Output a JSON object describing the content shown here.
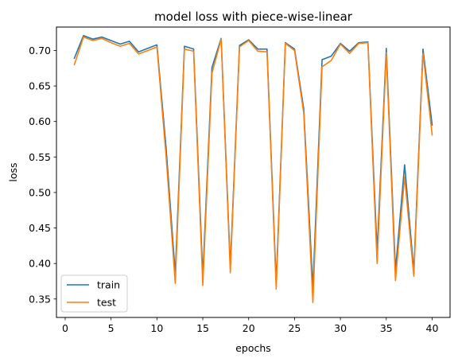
{
  "chart_data": {
    "type": "line",
    "title": "model loss with piece-wise-linear",
    "xlabel": "epochs",
    "ylabel": "loss",
    "xlim": [
      -0.95,
      41.95
    ],
    "ylim": [
      0.324,
      0.733
    ],
    "xticks": [
      0,
      5,
      10,
      15,
      20,
      25,
      30,
      35,
      40
    ],
    "yticks": [
      0.35,
      0.4,
      0.45,
      0.5,
      0.55,
      0.6,
      0.65,
      0.7
    ],
    "ytick_labels": [
      "0.35",
      "0.40",
      "0.45",
      "0.50",
      "0.55",
      "0.60",
      "0.65",
      "0.70"
    ],
    "grid": false,
    "legend_position": "lower-left",
    "x": [
      1,
      2,
      3,
      4,
      5,
      6,
      7,
      8,
      9,
      10,
      11,
      12,
      13,
      14,
      15,
      16,
      17,
      18,
      19,
      20,
      21,
      22,
      23,
      24,
      25,
      26,
      27,
      28,
      29,
      30,
      31,
      32,
      33,
      34,
      35,
      36,
      37,
      38,
      39,
      40
    ],
    "series": [
      {
        "name": "train",
        "color": "#1f77b4",
        "values": [
          0.689,
          0.721,
          0.716,
          0.719,
          0.714,
          0.709,
          0.713,
          0.698,
          0.703,
          0.708,
          0.563,
          0.385,
          0.706,
          0.702,
          0.382,
          0.676,
          0.717,
          0.395,
          0.707,
          0.715,
          0.702,
          0.702,
          0.372,
          0.711,
          0.702,
          0.618,
          0.365,
          0.687,
          0.692,
          0.71,
          0.699,
          0.711,
          0.712,
          0.417,
          0.703,
          0.39,
          0.539,
          0.389,
          0.702,
          0.595
        ]
      },
      {
        "name": "test",
        "color": "#ff7f0e",
        "values": [
          0.68,
          0.719,
          0.714,
          0.717,
          0.711,
          0.706,
          0.71,
          0.695,
          0.7,
          0.705,
          0.551,
          0.372,
          0.702,
          0.699,
          0.369,
          0.668,
          0.716,
          0.387,
          0.705,
          0.714,
          0.699,
          0.698,
          0.364,
          0.71,
          0.7,
          0.612,
          0.345,
          0.677,
          0.686,
          0.709,
          0.696,
          0.71,
          0.711,
          0.4,
          0.697,
          0.376,
          0.522,
          0.382,
          0.696,
          0.581
        ]
      }
    ]
  }
}
